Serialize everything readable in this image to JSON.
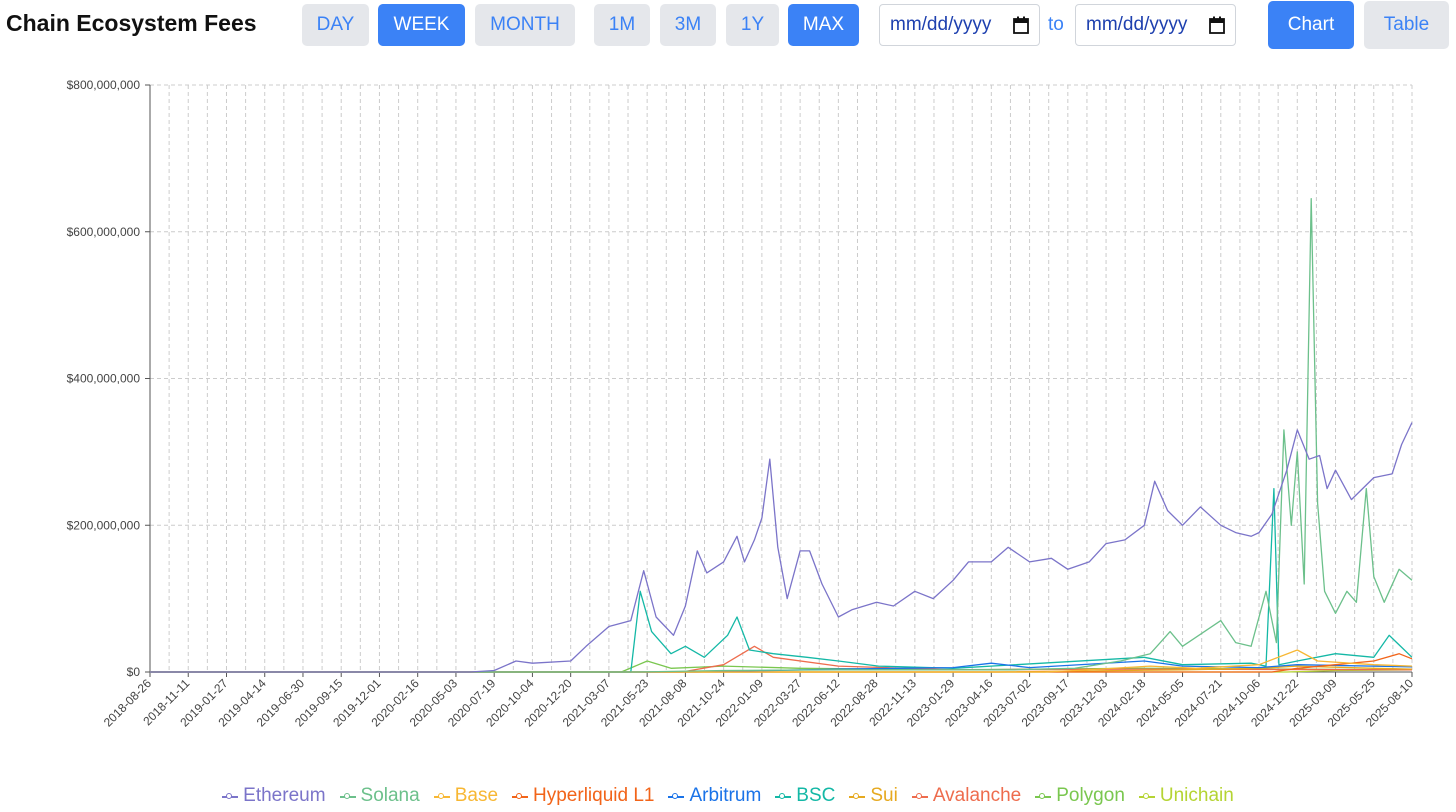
{
  "header": {
    "title": "Chain Ecosystem Fees",
    "interval_buttons": [
      {
        "label": "DAY",
        "active": false
      },
      {
        "label": "WEEK",
        "active": true
      },
      {
        "label": "MONTH",
        "active": false
      }
    ],
    "range_buttons": [
      {
        "label": "1M",
        "active": false
      },
      {
        "label": "3M",
        "active": false
      },
      {
        "label": "1Y",
        "active": false
      },
      {
        "label": "MAX",
        "active": true
      }
    ],
    "start_date_placeholder": "mm/dd/yyyy",
    "to_label": "to",
    "end_date_placeholder": "mm/dd/yyyy",
    "view_buttons": [
      {
        "label": "Chart",
        "active": true
      },
      {
        "label": "Table",
        "active": false
      }
    ]
  },
  "colors": {
    "accent": "#3b82f6",
    "inactive_bg": "#e5e7eb",
    "grid": "#cccccc"
  },
  "chart_data": {
    "type": "line",
    "title": "",
    "xlabel": "",
    "ylabel": "",
    "ylim": [
      0,
      800000000
    ],
    "y_ticks": [
      0,
      200000000,
      400000000,
      600000000,
      800000000
    ],
    "y_tick_labels": [
      "$0",
      "$200,000,000",
      "$400,000,000",
      "$600,000,000",
      "$800,000,000"
    ],
    "x_tick_labels": [
      "2018-08-26",
      "2018-11-11",
      "2019-01-27",
      "2019-04-14",
      "2019-06-30",
      "2019-09-15",
      "2019-12-01",
      "2020-02-16",
      "2020-05-03",
      "2020-07-19",
      "2020-10-04",
      "2020-12-20",
      "2021-03-07",
      "2021-05-23",
      "2021-08-08",
      "2021-10-24",
      "2022-01-09",
      "2022-03-27",
      "2022-06-12",
      "2022-08-28",
      "2022-11-13",
      "2023-01-29",
      "2023-04-16",
      "2023-07-02",
      "2023-09-17",
      "2023-12-03",
      "2024-02-18",
      "2024-05-05",
      "2024-07-21",
      "2024-10-06",
      "2024-12-22",
      "2025-03-09",
      "2025-05-25",
      "2025-08-10"
    ],
    "grid": true,
    "legend_position": "bottom",
    "series": [
      {
        "name": "Ethereum",
        "color": "#7b74c9",
        "points": [
          [
            "2018-08-26",
            0
          ],
          [
            "2020-06-01",
            0
          ],
          [
            "2020-07-19",
            2000000
          ],
          [
            "2020-09-01",
            15000000
          ],
          [
            "2020-10-04",
            12000000
          ],
          [
            "2020-12-20",
            15000000
          ],
          [
            "2021-01-20",
            35000000
          ],
          [
            "2021-03-07",
            62000000
          ],
          [
            "2021-04-20",
            70000000
          ],
          [
            "2021-05-16",
            138000000
          ],
          [
            "2021-06-10",
            75000000
          ],
          [
            "2021-07-15",
            50000000
          ],
          [
            "2021-08-08",
            90000000
          ],
          [
            "2021-09-01",
            165000000
          ],
          [
            "2021-09-20",
            135000000
          ],
          [
            "2021-10-24",
            150000000
          ],
          [
            "2021-11-20",
            185000000
          ],
          [
            "2021-12-05",
            150000000
          ],
          [
            "2021-12-25",
            180000000
          ],
          [
            "2022-01-09",
            210000000
          ],
          [
            "2022-01-25",
            290000000
          ],
          [
            "2022-02-10",
            170000000
          ],
          [
            "2022-03-01",
            100000000
          ],
          [
            "2022-03-27",
            165000000
          ],
          [
            "2022-04-15",
            165000000
          ],
          [
            "2022-05-10",
            120000000
          ],
          [
            "2022-06-12",
            75000000
          ],
          [
            "2022-07-10",
            85000000
          ],
          [
            "2022-08-28",
            95000000
          ],
          [
            "2022-10-01",
            90000000
          ],
          [
            "2022-11-13",
            110000000
          ],
          [
            "2022-12-20",
            100000000
          ],
          [
            "2023-01-29",
            125000000
          ],
          [
            "2023-03-01",
            150000000
          ],
          [
            "2023-04-16",
            150000000
          ],
          [
            "2023-05-20",
            170000000
          ],
          [
            "2023-07-02",
            150000000
          ],
          [
            "2023-08-15",
            155000000
          ],
          [
            "2023-09-17",
            140000000
          ],
          [
            "2023-10-30",
            150000000
          ],
          [
            "2023-12-03",
            175000000
          ],
          [
            "2024-01-10",
            180000000
          ],
          [
            "2024-02-18",
            200000000
          ],
          [
            "2024-03-10",
            260000000
          ],
          [
            "2024-04-05",
            220000000
          ],
          [
            "2024-05-05",
            200000000
          ],
          [
            "2024-06-10",
            225000000
          ],
          [
            "2024-07-21",
            200000000
          ],
          [
            "2024-08-20",
            190000000
          ],
          [
            "2024-09-20",
            185000000
          ],
          [
            "2024-10-06",
            190000000
          ],
          [
            "2024-11-01",
            215000000
          ],
          [
            "2024-12-01",
            275000000
          ],
          [
            "2024-12-22",
            330000000
          ],
          [
            "2025-01-15",
            290000000
          ],
          [
            "2025-02-05",
            295000000
          ],
          [
            "2025-02-20",
            250000000
          ],
          [
            "2025-03-09",
            275000000
          ],
          [
            "2025-04-10",
            235000000
          ],
          [
            "2025-05-25",
            265000000
          ],
          [
            "2025-07-01",
            270000000
          ],
          [
            "2025-07-20",
            310000000
          ],
          [
            "2025-08-10",
            340000000
          ]
        ]
      },
      {
        "name": "Solana",
        "color": "#6cc08b",
        "points": [
          [
            "2018-08-26",
            0
          ],
          [
            "2021-05-01",
            0
          ],
          [
            "2021-10-24",
            2000000
          ],
          [
            "2022-06-12",
            3000000
          ],
          [
            "2023-06-01",
            3000000
          ],
          [
            "2023-10-01",
            5000000
          ],
          [
            "2024-01-01",
            15000000
          ],
          [
            "2024-03-01",
            25000000
          ],
          [
            "2024-04-10",
            55000000
          ],
          [
            "2024-05-05",
            35000000
          ],
          [
            "2024-07-21",
            70000000
          ],
          [
            "2024-08-20",
            40000000
          ],
          [
            "2024-09-20",
            35000000
          ],
          [
            "2024-10-20",
            110000000
          ],
          [
            "2024-11-10",
            40000000
          ],
          [
            "2024-11-25",
            330000000
          ],
          [
            "2024-12-10",
            200000000
          ],
          [
            "2024-12-22",
            300000000
          ],
          [
            "2025-01-05",
            120000000
          ],
          [
            "2025-01-19",
            645000000
          ],
          [
            "2025-02-01",
            230000000
          ],
          [
            "2025-02-15",
            110000000
          ],
          [
            "2025-03-09",
            80000000
          ],
          [
            "2025-04-01",
            110000000
          ],
          [
            "2025-04-20",
            95000000
          ],
          [
            "2025-05-10",
            250000000
          ],
          [
            "2025-05-25",
            130000000
          ],
          [
            "2025-06-15",
            95000000
          ],
          [
            "2025-07-15",
            140000000
          ],
          [
            "2025-08-10",
            125000000
          ]
        ]
      },
      {
        "name": "Base",
        "color": "#f7b733",
        "points": [
          [
            "2018-08-26",
            0
          ],
          [
            "2023-08-01",
            0
          ],
          [
            "2023-10-01",
            2000000
          ],
          [
            "2024-03-01",
            8000000
          ],
          [
            "2024-06-01",
            5000000
          ],
          [
            "2024-10-06",
            10000000
          ],
          [
            "2024-12-22",
            30000000
          ],
          [
            "2025-02-01",
            15000000
          ],
          [
            "2025-05-25",
            10000000
          ],
          [
            "2025-08-10",
            8000000
          ]
        ]
      },
      {
        "name": "Hyperliquid L1",
        "color": "#f26419",
        "points": [
          [
            "2018-08-26",
            0
          ],
          [
            "2024-11-01",
            0
          ],
          [
            "2024-12-22",
            5000000
          ],
          [
            "2025-03-09",
            10000000
          ],
          [
            "2025-05-25",
            15000000
          ],
          [
            "2025-07-15",
            25000000
          ],
          [
            "2025-08-10",
            18000000
          ]
        ]
      },
      {
        "name": "Arbitrum",
        "color": "#1a73e8",
        "points": [
          [
            "2018-08-26",
            0
          ],
          [
            "2021-09-01",
            0
          ],
          [
            "2022-06-12",
            4000000
          ],
          [
            "2023-01-29",
            6000000
          ],
          [
            "2023-04-16",
            12000000
          ],
          [
            "2023-07-02",
            6000000
          ],
          [
            "2024-02-18",
            15000000
          ],
          [
            "2024-05-05",
            8000000
          ],
          [
            "2024-10-06",
            6000000
          ],
          [
            "2024-12-22",
            10000000
          ],
          [
            "2025-08-10",
            7000000
          ]
        ]
      },
      {
        "name": "BSC",
        "color": "#14b8a6",
        "points": [
          [
            "2018-08-26",
            0
          ],
          [
            "2021-04-20",
            0
          ],
          [
            "2021-05-09",
            110000000
          ],
          [
            "2021-06-01",
            55000000
          ],
          [
            "2021-07-10",
            25000000
          ],
          [
            "2021-08-08",
            35000000
          ],
          [
            "2021-09-15",
            20000000
          ],
          [
            "2021-11-01",
            50000000
          ],
          [
            "2021-11-20",
            75000000
          ],
          [
            "2021-12-15",
            30000000
          ],
          [
            "2022-02-01",
            25000000
          ],
          [
            "2022-04-10",
            20000000
          ],
          [
            "2022-06-12",
            15000000
          ],
          [
            "2022-09-01",
            8000000
          ],
          [
            "2023-01-29",
            5000000
          ],
          [
            "2024-02-18",
            20000000
          ],
          [
            "2024-05-05",
            10000000
          ],
          [
            "2024-09-20",
            12000000
          ],
          [
            "2024-10-20",
            8000000
          ],
          [
            "2024-11-05",
            250000000
          ],
          [
            "2024-11-15",
            10000000
          ],
          [
            "2024-12-22",
            15000000
          ],
          [
            "2025-03-09",
            25000000
          ],
          [
            "2025-05-25",
            20000000
          ],
          [
            "2025-06-25",
            50000000
          ],
          [
            "2025-08-10",
            20000000
          ]
        ]
      },
      {
        "name": "Sui",
        "color": "#e6a91f",
        "points": [
          [
            "2018-08-26",
            0
          ],
          [
            "2023-05-01",
            0
          ],
          [
            "2024-05-05",
            3000000
          ],
          [
            "2024-10-06",
            5000000
          ],
          [
            "2024-12-22",
            8000000
          ],
          [
            "2025-05-25",
            5000000
          ],
          [
            "2025-08-10",
            4000000
          ]
        ]
      },
      {
        "name": "Avalanche",
        "color": "#ee6c4d",
        "points": [
          [
            "2018-08-26",
            0
          ],
          [
            "2021-08-01",
            0
          ],
          [
            "2021-10-24",
            10000000
          ],
          [
            "2021-12-25",
            35000000
          ],
          [
            "2022-02-01",
            20000000
          ],
          [
            "2022-06-12",
            8000000
          ],
          [
            "2023-01-29",
            3000000
          ],
          [
            "2024-02-18",
            4000000
          ],
          [
            "2025-08-10",
            3000000
          ]
        ]
      },
      {
        "name": "Polygon",
        "color": "#7ac74f",
        "points": [
          [
            "2018-08-26",
            0
          ],
          [
            "2021-04-01",
            0
          ],
          [
            "2021-05-23",
            15000000
          ],
          [
            "2021-07-10",
            5000000
          ],
          [
            "2021-10-24",
            8000000
          ],
          [
            "2022-03-27",
            5000000
          ],
          [
            "2023-01-29",
            3000000
          ],
          [
            "2024-02-18",
            5000000
          ],
          [
            "2025-08-10",
            3000000
          ]
        ]
      },
      {
        "name": "Unichain",
        "color": "#b5d433",
        "points": [
          [
            "2018-08-26",
            0
          ],
          [
            "2024-12-01",
            0
          ],
          [
            "2025-03-09",
            2000000
          ],
          [
            "2025-08-10",
            3000000
          ]
        ]
      }
    ]
  }
}
